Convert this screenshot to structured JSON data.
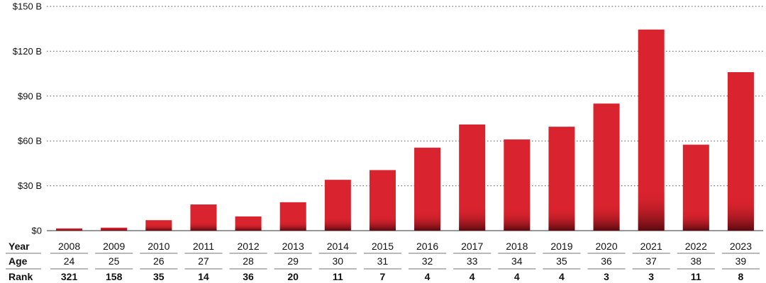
{
  "chart_data": {
    "type": "bar",
    "categories": [
      "2008",
      "2009",
      "2010",
      "2011",
      "2012",
      "2013",
      "2014",
      "2015",
      "2016",
      "2017",
      "2018",
      "2019",
      "2020",
      "2021",
      "2022",
      "2023"
    ],
    "values": [
      1.5,
      2,
      7,
      17.5,
      9.5,
      19,
      34,
      40.5,
      55.5,
      71,
      61,
      69.5,
      85,
      134.5,
      57.5,
      106
    ],
    "ylim": [
      0,
      150
    ],
    "yticks": [
      0,
      30,
      60,
      90,
      120,
      150
    ],
    "ytick_labels": [
      "$0",
      "$30 B",
      "$60 B",
      "$90 B",
      "$120 B",
      "$150 B"
    ],
    "grid": "dotted-horizontal",
    "bar_color": "#d9232e",
    "bar_shadow_color": "#5a0a10"
  },
  "table": {
    "row_labels": {
      "year": "Year",
      "age": "Age",
      "rank": "Rank"
    },
    "age": [
      "24",
      "25",
      "26",
      "27",
      "28",
      "29",
      "30",
      "31",
      "32",
      "33",
      "34",
      "35",
      "36",
      "37",
      "38",
      "39"
    ],
    "rank": [
      "321",
      "158",
      "35",
      "14",
      "36",
      "20",
      "11",
      "7",
      "4",
      "4",
      "4",
      "4",
      "3",
      "3",
      "11",
      "8"
    ]
  }
}
